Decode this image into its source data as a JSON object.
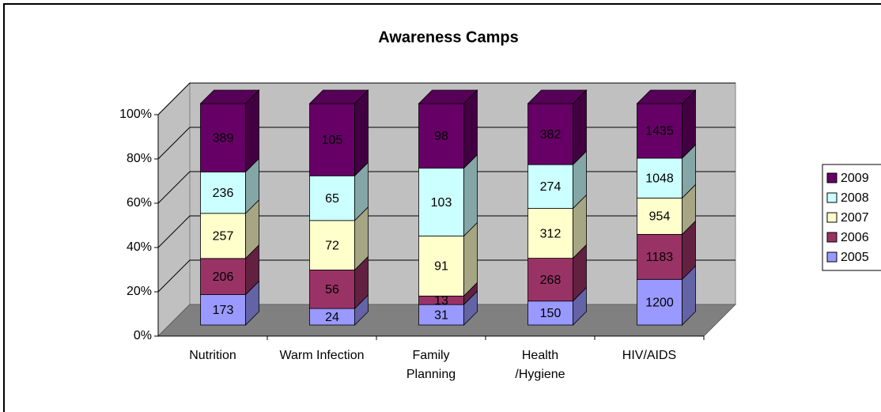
{
  "chart_data": {
    "type": "bar3d_percent_stacked",
    "title": "Awareness Camps",
    "categories": [
      "Nutrition",
      "Warm Infection",
      "Family\nPlanning",
      "Health\n/Hygiene",
      "HIV/AIDS"
    ],
    "series": [
      {
        "name": "2005",
        "color": "#9999ff",
        "values": [
          173,
          24,
          31,
          150,
          1200
        ]
      },
      {
        "name": "2006",
        "color": "#993366",
        "values": [
          206,
          56,
          13,
          268,
          1183
        ]
      },
      {
        "name": "2007",
        "color": "#ffffcc",
        "values": [
          257,
          72,
          91,
          312,
          954
        ]
      },
      {
        "name": "2008",
        "color": "#ccffff",
        "values": [
          236,
          65,
          103,
          274,
          1048
        ]
      },
      {
        "name": "2009",
        "color": "#660066",
        "values": [
          389,
          105,
          98,
          382,
          1435
        ]
      }
    ],
    "ylim": [
      0,
      100
    ],
    "yticks": [
      {
        "value": 0,
        "label": "0%"
      },
      {
        "value": 20,
        "label": "20%"
      },
      {
        "value": 40,
        "label": "40%"
      },
      {
        "value": 60,
        "label": "60%"
      },
      {
        "value": 80,
        "label": "80%"
      },
      {
        "value": 100,
        "label": "100%"
      }
    ],
    "grid": true,
    "legend": "right"
  }
}
